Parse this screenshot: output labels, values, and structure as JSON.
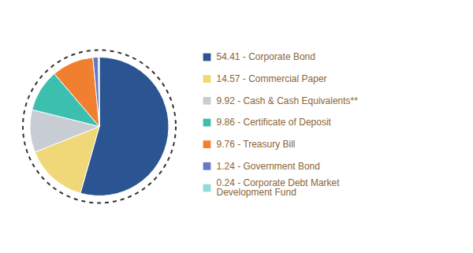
{
  "chart_data": {
    "type": "pie",
    "categories": [
      "54.41 - Corporate Bond",
      "14.57 - Commercial Paper",
      "9.92 - Cash & Cash Equivalents**",
      "9.86 - Certificate of Deposit",
      "9.76 - Treasury Bill",
      "1.24 - Government Bond",
      "0.24 - Corporate Debt Market\nDevelopment Fund"
    ],
    "values": [
      54.41,
      14.57,
      9.92,
      9.86,
      9.76,
      1.24,
      0.24
    ],
    "colors": [
      "#2b5592",
      "#f0d878",
      "#c8cdd4",
      "#3dbfb0",
      "#f08030",
      "#6878c8",
      "#90dcd8"
    ],
    "legend": "right"
  }
}
